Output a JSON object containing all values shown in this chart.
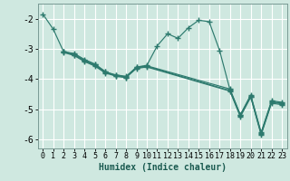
{
  "xlabel": "Humidex (Indice chaleur)",
  "background_color": "#cfe8e0",
  "grid_color": "#ffffff",
  "line_color": "#2d7a6e",
  "xlim": [
    -0.5,
    23.5
  ],
  "ylim": [
    -6.3,
    -1.5
  ],
  "yticks": [
    -6,
    -5,
    -4,
    -3,
    -2
  ],
  "xticks": [
    0,
    1,
    2,
    3,
    4,
    5,
    6,
    7,
    8,
    9,
    10,
    11,
    12,
    13,
    14,
    15,
    16,
    17,
    18,
    19,
    20,
    21,
    22,
    23
  ],
  "series1": [
    [
      0,
      -1.85
    ],
    [
      1,
      -2.35
    ],
    [
      2,
      -3.1
    ],
    [
      3,
      -3.15
    ],
    [
      4,
      -3.35
    ],
    [
      5,
      -3.5
    ],
    [
      6,
      -3.75
    ],
    [
      7,
      -3.9
    ],
    [
      8,
      -3.95
    ],
    [
      9,
      -3.6
    ],
    [
      10,
      -3.55
    ],
    [
      11,
      -2.9
    ],
    [
      12,
      -2.5
    ],
    [
      13,
      -2.65
    ],
    [
      14,
      -2.3
    ],
    [
      15,
      -2.05
    ],
    [
      16,
      -2.1
    ],
    [
      17,
      -3.05
    ],
    [
      18,
      -4.35
    ],
    [
      19,
      -5.2
    ],
    [
      20,
      -4.55
    ],
    [
      21,
      -5.8
    ],
    [
      22,
      -4.75
    ],
    [
      23,
      -4.8
    ]
  ],
  "series2": [
    [
      2,
      -3.1
    ],
    [
      3,
      -3.2
    ],
    [
      4,
      -3.4
    ],
    [
      5,
      -3.55
    ],
    [
      6,
      -3.78
    ],
    [
      7,
      -3.88
    ],
    [
      8,
      -3.93
    ],
    [
      9,
      -3.63
    ],
    [
      10,
      -3.58
    ],
    [
      18,
      -4.38
    ],
    [
      19,
      -5.22
    ],
    [
      20,
      -4.58
    ],
    [
      21,
      -5.82
    ],
    [
      22,
      -4.77
    ],
    [
      23,
      -4.82
    ]
  ],
  "series3": [
    [
      2,
      -3.12
    ],
    [
      3,
      -3.22
    ],
    [
      4,
      -3.42
    ],
    [
      5,
      -3.57
    ],
    [
      6,
      -3.8
    ],
    [
      7,
      -3.9
    ],
    [
      8,
      -3.95
    ],
    [
      9,
      -3.65
    ],
    [
      10,
      -3.6
    ],
    [
      18,
      -4.4
    ],
    [
      19,
      -5.25
    ],
    [
      20,
      -4.6
    ],
    [
      21,
      -5.85
    ],
    [
      22,
      -4.8
    ],
    [
      23,
      -4.85
    ]
  ],
  "series4": [
    [
      2,
      -3.08
    ],
    [
      3,
      -3.18
    ],
    [
      4,
      -3.38
    ],
    [
      5,
      -3.52
    ],
    [
      6,
      -3.76
    ],
    [
      7,
      -3.86
    ],
    [
      8,
      -3.91
    ],
    [
      9,
      -3.61
    ],
    [
      10,
      -3.56
    ],
    [
      18,
      -4.33
    ],
    [
      19,
      -5.18
    ],
    [
      20,
      -4.53
    ],
    [
      21,
      -5.77
    ],
    [
      22,
      -4.72
    ],
    [
      23,
      -4.77
    ]
  ],
  "xlabel_fontsize": 7,
  "xlabel_color": "#1a5a50",
  "tick_fontsize": 6,
  "ytick_fontsize": 7
}
